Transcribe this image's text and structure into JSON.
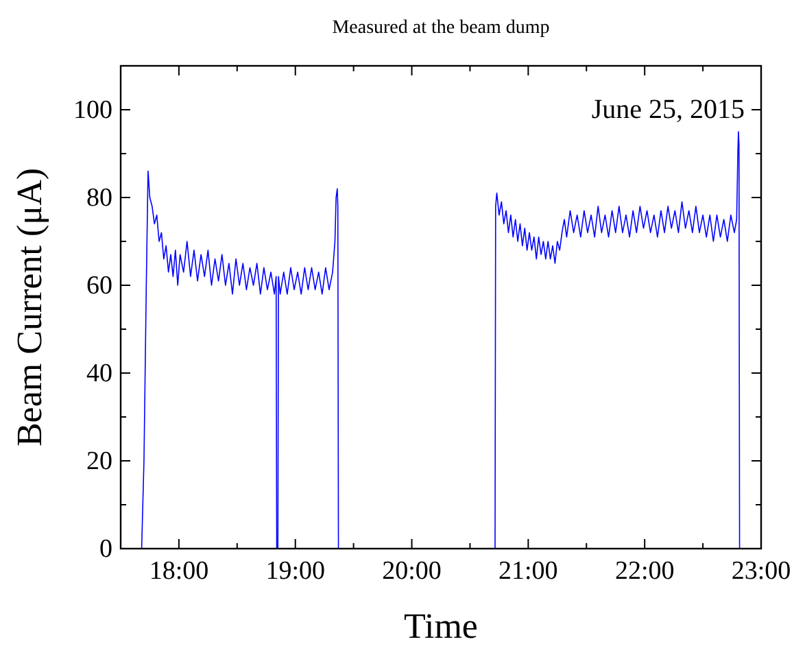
{
  "chart_data": {
    "type": "line",
    "title": "Measured at the beam dump",
    "xlabel": "Time",
    "ylabel": "Beam Current (μA)",
    "annotations": [
      "June 25, 2015"
    ],
    "xlim": [
      17.5,
      23
    ],
    "ylim": [
      0,
      110
    ],
    "xticks": [
      {
        "value": 17.5,
        "label": null
      },
      {
        "value": 18,
        "label": "18:00"
      },
      {
        "value": 18.5,
        "label": null
      },
      {
        "value": 19,
        "label": "19:00"
      },
      {
        "value": 19.5,
        "label": null
      },
      {
        "value": 20,
        "label": "20:00"
      },
      {
        "value": 20.5,
        "label": null
      },
      {
        "value": 21,
        "label": "21:00"
      },
      {
        "value": 21.5,
        "label": null
      },
      {
        "value": 22,
        "label": "22:00"
      },
      {
        "value": 22.5,
        "label": null
      },
      {
        "value": 23,
        "label": "23:00"
      }
    ],
    "yticks": [
      0,
      {
        "value": 10,
        "label": null
      },
      20,
      {
        "value": 30,
        "label": null
      },
      40,
      {
        "value": 50,
        "label": null
      },
      60,
      {
        "value": 70,
        "label": null
      },
      80,
      {
        "value": 90,
        "label": null
      },
      100,
      {
        "value": 110,
        "label": null
      }
    ],
    "grid": false,
    "line_style": "solid",
    "marker": "none",
    "series": [
      {
        "color": "#0000ff",
        "x": [
          17.68,
          17.7,
          17.72,
          17.735,
          17.75,
          17.77,
          17.79,
          17.81,
          17.83,
          17.85,
          17.87,
          17.89,
          17.91,
          17.93,
          17.95,
          17.97,
          17.99,
          18.01,
          18.04,
          18.07,
          18.1,
          18.13,
          18.16,
          18.19,
          18.22,
          18.25,
          18.28,
          18.31,
          18.34,
          18.37,
          18.4,
          18.43,
          18.46,
          18.49,
          18.52,
          18.55,
          18.58,
          18.61,
          18.64,
          18.67,
          18.7,
          18.73,
          18.76,
          18.79,
          18.82,
          18.835,
          18.84,
          18.85,
          18.855,
          18.87,
          18.9,
          18.93,
          18.96,
          18.99,
          19.02,
          19.05,
          19.08,
          19.11,
          19.14,
          19.17,
          19.2,
          19.23,
          19.26,
          19.29,
          19.32,
          19.34,
          19.35,
          19.36,
          19.365,
          19.37,
          20.0,
          20.715,
          20.72,
          20.73,
          20.75,
          20.77,
          20.79,
          20.81,
          20.83,
          20.85,
          20.87,
          20.89,
          20.91,
          20.93,
          20.95,
          20.97,
          20.99,
          21.01,
          21.03,
          21.05,
          21.07,
          21.09,
          21.11,
          21.13,
          21.15,
          21.17,
          21.19,
          21.21,
          21.23,
          21.25,
          21.27,
          21.29,
          21.31,
          21.33,
          21.36,
          21.39,
          21.42,
          21.45,
          21.48,
          21.51,
          21.54,
          21.57,
          21.6,
          21.63,
          21.66,
          21.69,
          21.72,
          21.75,
          21.78,
          21.81,
          21.84,
          21.87,
          21.9,
          21.93,
          21.96,
          21.99,
          22.02,
          22.05,
          22.08,
          22.11,
          22.14,
          22.17,
          22.2,
          22.23,
          22.26,
          22.29,
          22.32,
          22.35,
          22.38,
          22.41,
          22.44,
          22.47,
          22.5,
          22.53,
          22.56,
          22.59,
          22.62,
          22.65,
          22.68,
          22.71,
          22.74,
          22.77,
          22.79,
          22.8,
          22.805,
          22.81,
          22.815
        ],
        "values": [
          0,
          20,
          60,
          86,
          80,
          78,
          74,
          76,
          70,
          72,
          66,
          69,
          63,
          67,
          62,
          68,
          60,
          67,
          63,
          70,
          62,
          68,
          61,
          67,
          62,
          68,
          60,
          66,
          61,
          67,
          60,
          65,
          58,
          66,
          60,
          65,
          59,
          64,
          60,
          65,
          58,
          64,
          59,
          63,
          58,
          62,
          0,
          0,
          62,
          58,
          63,
          58,
          64,
          59,
          63,
          58,
          64,
          59,
          64,
          59,
          63,
          58,
          64,
          59,
          63,
          70,
          80,
          82,
          78,
          0,
          null,
          0,
          78,
          81,
          76,
          79,
          74,
          77,
          72,
          76,
          71,
          75,
          70,
          74,
          69,
          73,
          68,
          72,
          68,
          71,
          66,
          71,
          67,
          70,
          66,
          70,
          66,
          69,
          65,
          70,
          68,
          72,
          75,
          71,
          77,
          72,
          76,
          71,
          77,
          72,
          76,
          71,
          78,
          72,
          76,
          71,
          77,
          72,
          78,
          72,
          76,
          71,
          77,
          72,
          78,
          73,
          77,
          72,
          76,
          71,
          77,
          72,
          78,
          73,
          77,
          72,
          79,
          73,
          77,
          72,
          78,
          72,
          76,
          71,
          76,
          70,
          76,
          71,
          75,
          70,
          76,
          72,
          75,
          90,
          95,
          92,
          0
        ]
      }
    ]
  }
}
